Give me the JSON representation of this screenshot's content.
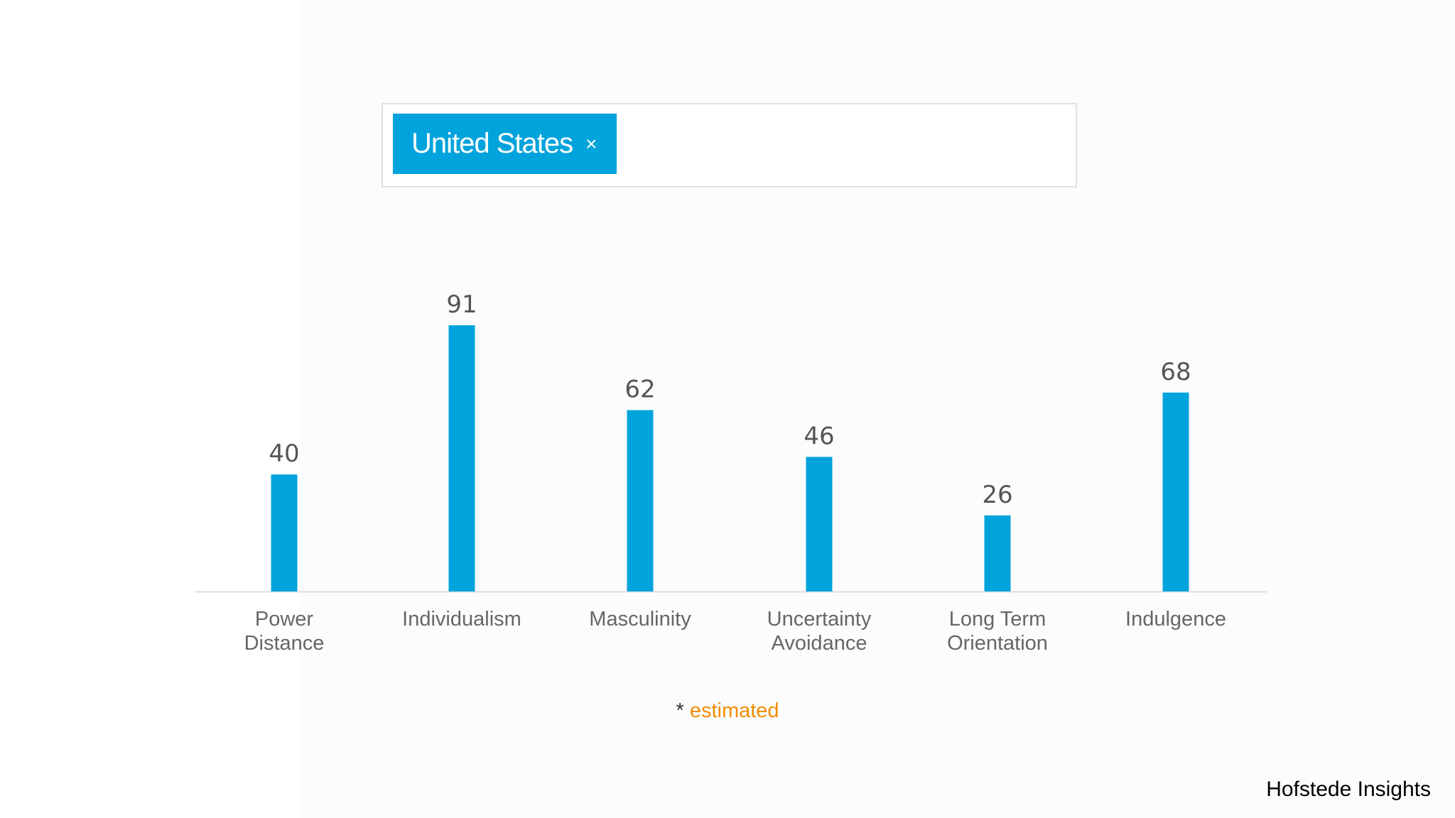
{
  "search": {
    "tags": [
      {
        "label": "United States",
        "remove": "×"
      }
    ]
  },
  "chart_data": {
    "type": "bar",
    "categories": [
      "Power\nDistance",
      "Individualism",
      "Masculinity",
      "Uncertainty\nAvoidance",
      "Long Term\nOrientation",
      "Indulgence"
    ],
    "values": [
      40,
      91,
      62,
      46,
      26,
      68
    ],
    "color": "#00a3dc",
    "ylim": [
      0,
      100
    ],
    "note": {
      "marker": "*",
      "text": "estimated"
    }
  },
  "footer": "Hofstede Insights"
}
